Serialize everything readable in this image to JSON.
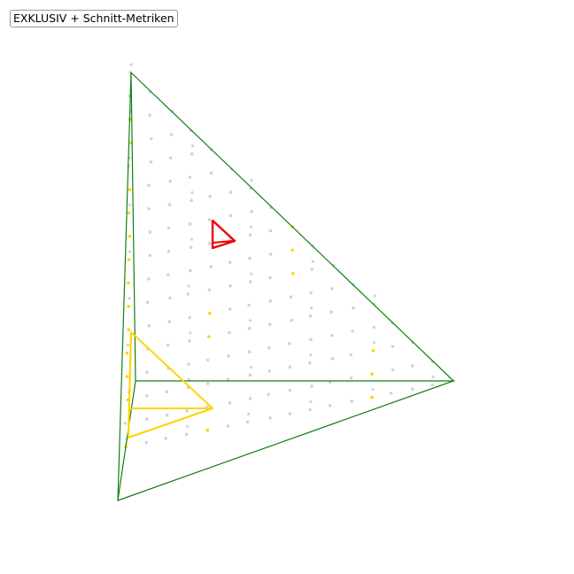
{
  "title": "EXKLUSIV + Schnitt-Metriken",
  "colors": {
    "edge": "#108010",
    "point": "#d3d3d3",
    "highlight_point": "#ffd400",
    "red_triangle": "#ee0000",
    "yellow_triangle": "#ffd400"
  }
}
